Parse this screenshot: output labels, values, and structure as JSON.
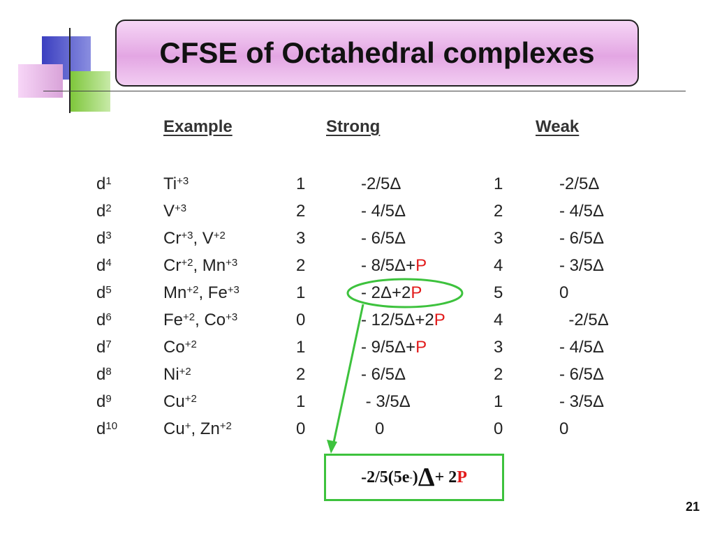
{
  "slide": {
    "title": "CFSE of Octahedral complexes",
    "page_number": "21"
  },
  "table": {
    "headers": {
      "example": "Example",
      "strong": "Strong",
      "weak": "Weak"
    },
    "rows": [
      {
        "config": "d",
        "config_sup": "1",
        "example": [
          [
            "Ti",
            "+3"
          ]
        ],
        "strong_n": "1",
        "strong_val": [
          [
            "-2/5Δ",
            ""
          ]
        ],
        "weak_n": "1",
        "weak_val": "-2/5Δ"
      },
      {
        "config": "d",
        "config_sup": "2",
        "example": [
          [
            "V",
            "+3"
          ]
        ],
        "strong_n": "2",
        "strong_val": [
          [
            "- 4/5Δ",
            ""
          ]
        ],
        "weak_n": "2",
        "weak_val": "- 4/5Δ"
      },
      {
        "config": "d",
        "config_sup": "3",
        "example": [
          [
            "Cr",
            "+3"
          ],
          [
            ", V",
            "+2"
          ]
        ],
        "strong_n": "3",
        "strong_val": [
          [
            "- 6/5Δ",
            ""
          ]
        ],
        "weak_n": "3",
        "weak_val": "- 6/5Δ"
      },
      {
        "config": "d",
        "config_sup": "4",
        "example": [
          [
            "Cr",
            "+2"
          ],
          [
            ", Mn",
            "+3"
          ]
        ],
        "strong_n": "2",
        "strong_val": [
          [
            "- 8/5Δ+",
            "P"
          ]
        ],
        "weak_n": "4",
        "weak_val": "- 3/5Δ"
      },
      {
        "config": "d",
        "config_sup": "5",
        "example": [
          [
            "Mn",
            "+2"
          ],
          [
            ", Fe",
            "+3"
          ]
        ],
        "strong_n": "1",
        "strong_val": [
          [
            "- 2Δ+2",
            "P"
          ]
        ],
        "weak_n": "5",
        "weak_val": "0"
      },
      {
        "config": "d",
        "config_sup": "6",
        "example": [
          [
            "Fe",
            "+2"
          ],
          [
            ", Co",
            "+3"
          ]
        ],
        "strong_n": "0",
        "strong_val": [
          [
            "- 12/5Δ+2",
            "P"
          ]
        ],
        "weak_n": "4",
        "weak_val": "  -2/5Δ"
      },
      {
        "config": "d",
        "config_sup": "7",
        "example": [
          [
            "Co",
            "+2"
          ]
        ],
        "strong_n": "1",
        "strong_val": [
          [
            "- 9/5Δ+",
            "P"
          ]
        ],
        "weak_n": "3",
        "weak_val": "- 4/5Δ"
      },
      {
        "config": "d",
        "config_sup": "8",
        "example": [
          [
            "Ni",
            "+2"
          ]
        ],
        "strong_n": "2",
        "strong_val": [
          [
            "- 6/5Δ",
            ""
          ]
        ],
        "weak_n": "2",
        "weak_val": "- 6/5Δ"
      },
      {
        "config": "d",
        "config_sup": "9",
        "example": [
          [
            "Cu",
            "+2"
          ]
        ],
        "strong_n": "1",
        "strong_val": [
          [
            " - 3/5Δ",
            ""
          ]
        ],
        "weak_n": "1",
        "weak_val": "- 3/5Δ"
      },
      {
        "config": "d",
        "config_sup": "10",
        "example": [
          [
            "Cu",
            "+"
          ],
          [
            ", Zn",
            "+2"
          ]
        ],
        "strong_n": "0",
        "strong_val": [
          [
            "   0",
            ""
          ]
        ],
        "weak_n": "0",
        "weak_val": "0"
      }
    ]
  },
  "formula": {
    "part1": "-2/5(5e",
    "part1_sup": "-",
    "part2": " )",
    "delta": "Δ",
    "part3": " + 2",
    "p": "P"
  },
  "colors": {
    "title_bg": "#e3a6e3",
    "highlight": "#3dc23d",
    "pairing_energy": "#e21b1b"
  }
}
